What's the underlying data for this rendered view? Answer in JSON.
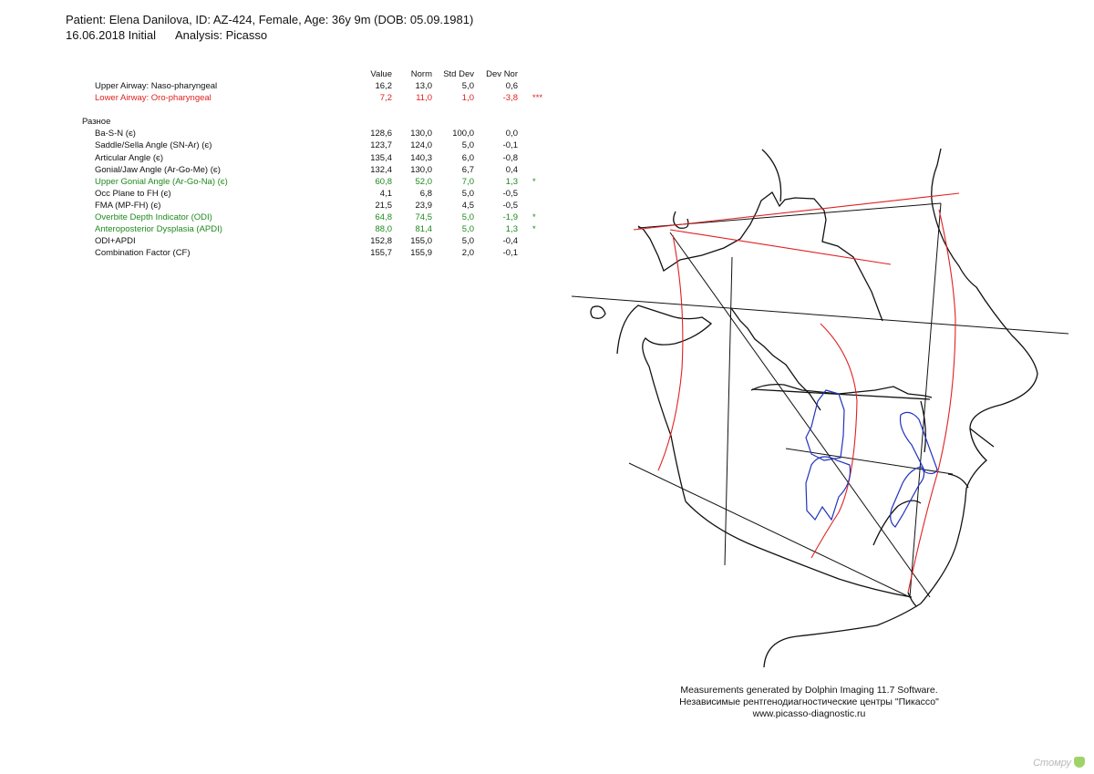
{
  "header": {
    "patient_line": "Patient: Elena Danilova, ID: AZ-424, Female, Age: 36y 9m (DOB: 05.09.1981)",
    "date": "16.06.2018 Initial",
    "analysis": "Analysis: Picasso"
  },
  "table": {
    "columns": [
      "Value",
      "Norm",
      "Std Dev",
      "Dev Nor"
    ],
    "airway": [
      {
        "label": "Upper Airway: Naso-pharyngeal",
        "value": "16,2",
        "norm": "13,0",
        "std": "5,0",
        "dev": "0,6",
        "flag": "",
        "color": "black"
      },
      {
        "label": "Lower Airway: Oro-pharyngeal",
        "value": "7,2",
        "norm": "11,0",
        "std": "1,0",
        "dev": "-3,8",
        "flag": "***",
        "color": "red"
      }
    ],
    "section_title": "Разное",
    "rows": [
      {
        "label": "Ba-S-N (є)",
        "value": "128,6",
        "norm": "130,0",
        "std": "100,0",
        "dev": "0,0",
        "flag": "",
        "color": "black"
      },
      {
        "label": "Saddle/Sella Angle (SN-Ar) (є)",
        "value": "123,7",
        "norm": "124,0",
        "std": "5,0",
        "dev": "-0,1",
        "flag": "",
        "color": "black"
      },
      {
        "label": "Articular Angle (є)",
        "value": "135,4",
        "norm": "140,3",
        "std": "6,0",
        "dev": "-0,8",
        "flag": "",
        "color": "black"
      },
      {
        "label": "Gonial/Jaw Angle (Ar-Go-Me) (є)",
        "value": "132,4",
        "norm": "130,0",
        "std": "6,7",
        "dev": "0,4",
        "flag": "",
        "color": "black"
      },
      {
        "label": " Upper Gonial Angle (Ar-Go-Na) (є)",
        "value": "60,8",
        "norm": "52,0",
        "std": "7,0",
        "dev": "1,3",
        "flag": "*",
        "color": "green"
      },
      {
        "label": "Occ Plane to FH (є)",
        "value": "4,1",
        "norm": "6,8",
        "std": "5,0",
        "dev": "-0,5",
        "flag": "",
        "color": "black"
      },
      {
        "label": "FMA (MP-FH) (є)",
        "value": "21,5",
        "norm": "23,9",
        "std": "4,5",
        "dev": "-0,5",
        "flag": "",
        "color": "black"
      },
      {
        "label": "Overbite Depth Indicator (ODI)",
        "value": "64,8",
        "norm": "74,5",
        "std": "5,0",
        "dev": "-1,9",
        "flag": "*",
        "color": "green"
      },
      {
        "label": "Anteroposterior Dysplasia (APDI)",
        "value": "88,0",
        "norm": "81,4",
        "std": "5,0",
        "dev": "1,3",
        "flag": "*",
        "color": "green"
      },
      {
        "label": "ODI+APDI",
        "value": "152,8",
        "norm": "155,0",
        "std": "5,0",
        "dev": "-0,4",
        "flag": "",
        "color": "black"
      },
      {
        "label": "Combination Factor (CF)",
        "value": "155,7",
        "norm": "155,9",
        "std": "2,0",
        "dev": "-0,1",
        "flag": "",
        "color": "black"
      }
    ]
  },
  "footer": {
    "line1": "Measurements generated by Dolphin Imaging 11.7 Software.",
    "line2": "Независимые рентгенодиагностические центры \"Пикассо\"",
    "line3": "www.picasso-diagnostic.ru"
  },
  "watermark": "Стомру",
  "colors": {
    "red": "#e02020",
    "green": "#1e8a1e",
    "teeth": "#2233bb",
    "trace": "#111111"
  }
}
